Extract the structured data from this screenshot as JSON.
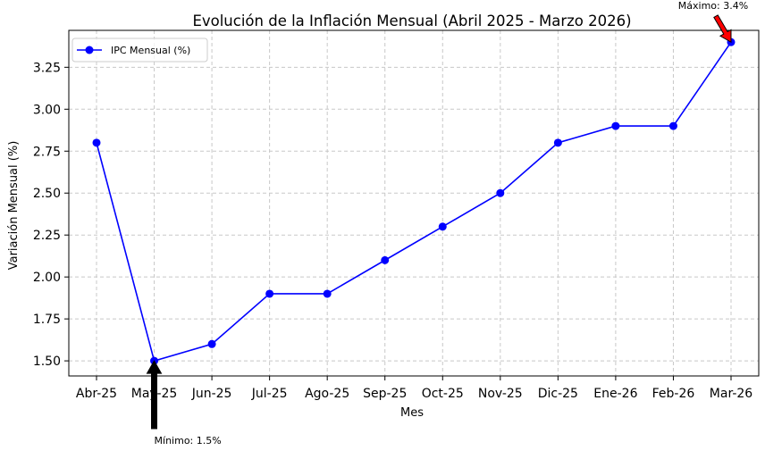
{
  "chart_data": {
    "type": "line",
    "title": "Evolución de la Inflación Mensual (Abril 2025 - Marzo 2026)",
    "xlabel": "Mes",
    "ylabel": "Variación Mensual (%)",
    "categories": [
      "Abr-25",
      "May-25",
      "Jun-25",
      "Jul-25",
      "Ago-25",
      "Sep-25",
      "Oct-25",
      "Nov-25",
      "Dic-25",
      "Ene-26",
      "Feb-26",
      "Mar-26"
    ],
    "series": [
      {
        "name": "IPC Mensual (%)",
        "values": [
          2.8,
          1.5,
          1.6,
          1.9,
          1.9,
          2.1,
          2.3,
          2.5,
          2.8,
          2.9,
          2.9,
          3.4
        ],
        "color": "#0000ff"
      }
    ],
    "ylim": [
      1.41,
      3.47
    ],
    "yticks": [
      "1.50",
      "1.75",
      "2.00",
      "2.25",
      "2.50",
      "2.75",
      "3.00",
      "3.25"
    ],
    "grid": true,
    "grid_style": "dashed",
    "legend_position": "upper-left",
    "annotations": [
      {
        "text": "Máximo: 3.4%",
        "category": "Mar-26",
        "value": 3.4,
        "arrow_color": "#ff0000"
      },
      {
        "text": "Mínimo: 1.5%",
        "category": "May-25",
        "value": 1.5,
        "arrow_color": "#000000"
      }
    ]
  }
}
